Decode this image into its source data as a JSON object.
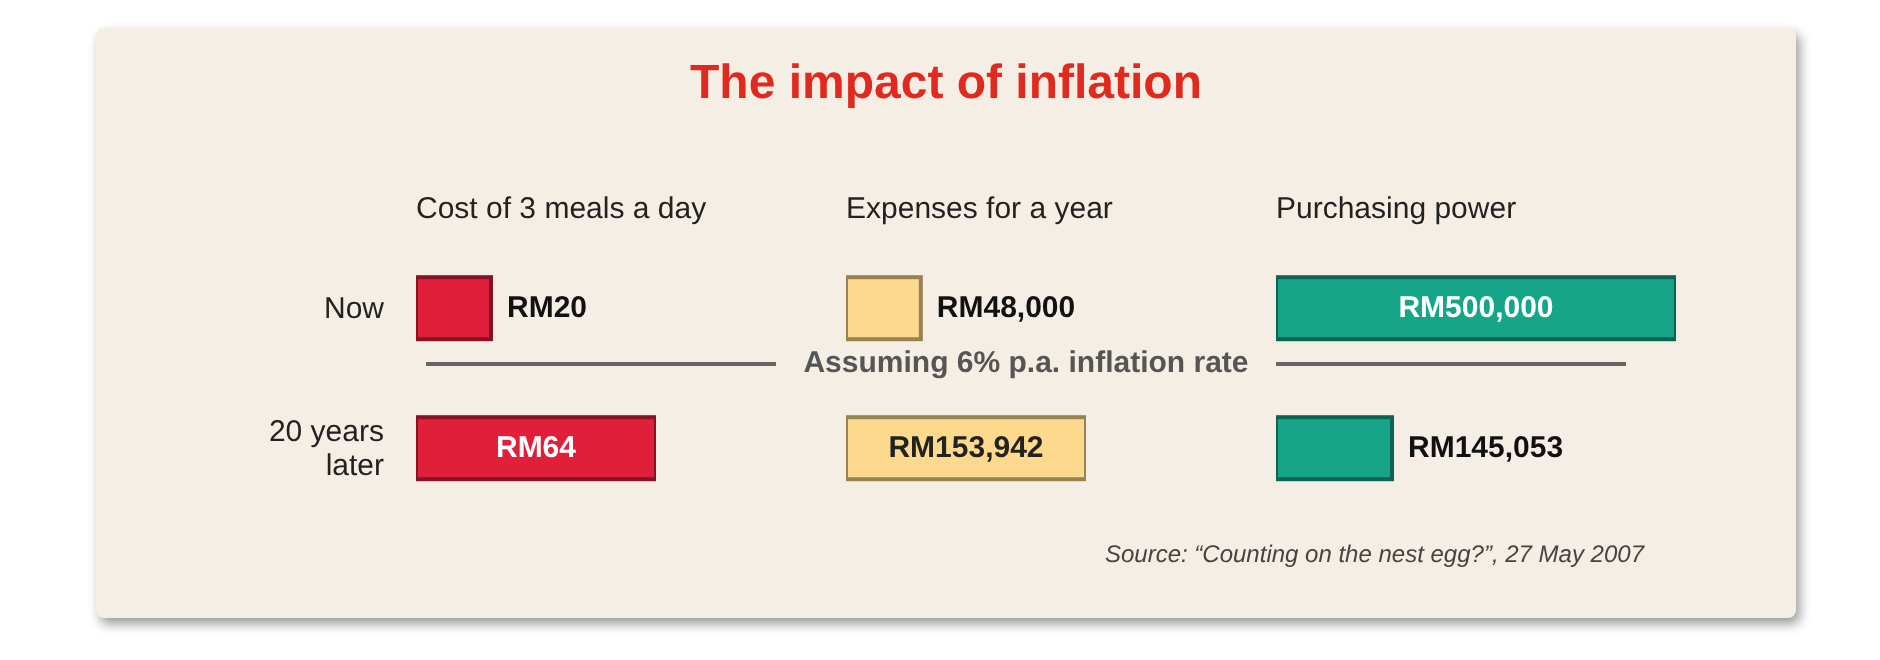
{
  "chart_data": [
    {
      "type": "other",
      "title": "The impact of inflation",
      "annotations": [
        "Assuming 6% p.a. inflation rate",
        "Source: “Counting on the nest egg?”, 27 May 2007"
      ]
    },
    {
      "type": "bar",
      "orientation": "horizontal",
      "title": "Cost of 3 meals a day",
      "categories": [
        "Now",
        "20 years later"
      ],
      "values": [
        20,
        64
      ],
      "value_labels": [
        "RM20",
        "RM64"
      ],
      "color": "#e0203a"
    },
    {
      "type": "bar",
      "orientation": "horizontal",
      "title": "Expenses for a year",
      "categories": [
        null,
        null
      ],
      "values": [
        48000,
        153942
      ],
      "value_labels": [
        "RM48,000",
        "RM153,942"
      ],
      "color": "#fcd98c",
      "tick_labels": false
    },
    {
      "type": "bar",
      "orientation": "horizontal",
      "title": "Purchasing power",
      "categories": [
        null,
        null
      ],
      "values": [
        500000,
        145053
      ],
      "value_labels": [
        "RM500,000",
        "RM145,053"
      ],
      "color": "#17a58a",
      "tick_labels": false
    }
  ]
}
